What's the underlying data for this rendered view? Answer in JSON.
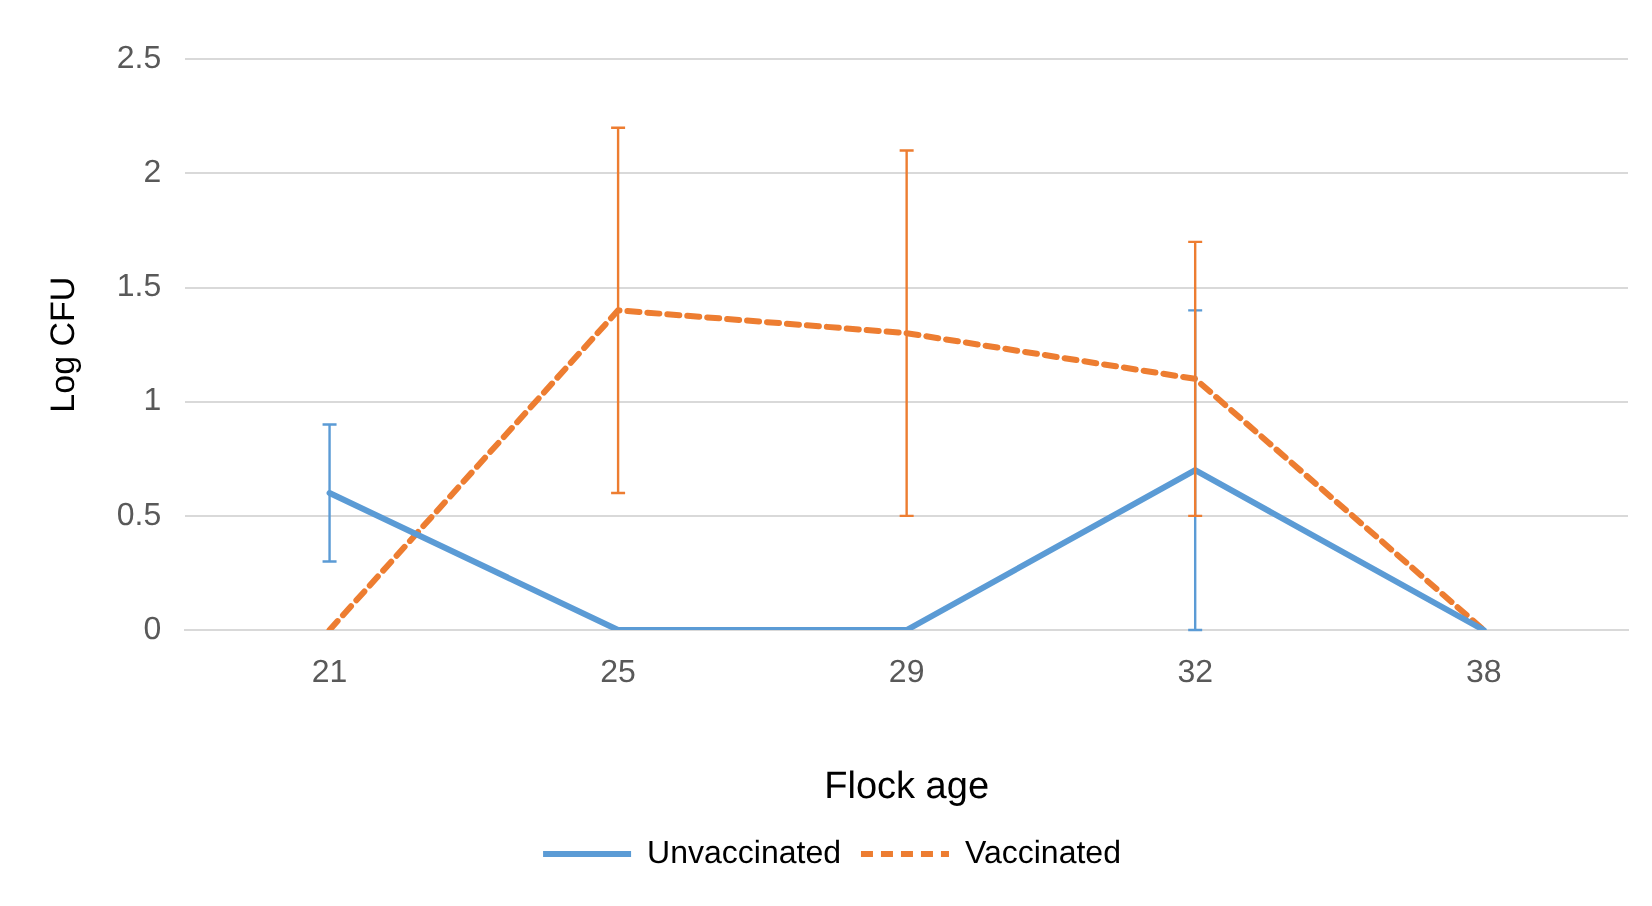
{
  "chart_data": {
    "type": "line",
    "xlabel": "Flock age",
    "ylabel": "Log CFU",
    "categories": [
      "21",
      "25",
      "29",
      "32",
      "38"
    ],
    "series": [
      {
        "name": "Unvaccinated",
        "color": "#5b9bd5",
        "line_style": "solid",
        "values": [
          0.6,
          0,
          0,
          0.7,
          0
        ],
        "errors": [
          0.3,
          null,
          null,
          0.7,
          null
        ]
      },
      {
        "name": "Vaccinated",
        "color": "#ed7d31",
        "line_style": "dashed",
        "values": [
          0,
          1.4,
          1.3,
          1.1,
          0
        ],
        "errors": [
          null,
          0.8,
          0.8,
          0.6,
          null
        ]
      }
    ],
    "ylim": [
      0,
      2.5
    ],
    "yticks": [
      0,
      0.5,
      1,
      1.5,
      2,
      2.5
    ],
    "grid": "y",
    "legend": "bottom",
    "marker": "none"
  }
}
